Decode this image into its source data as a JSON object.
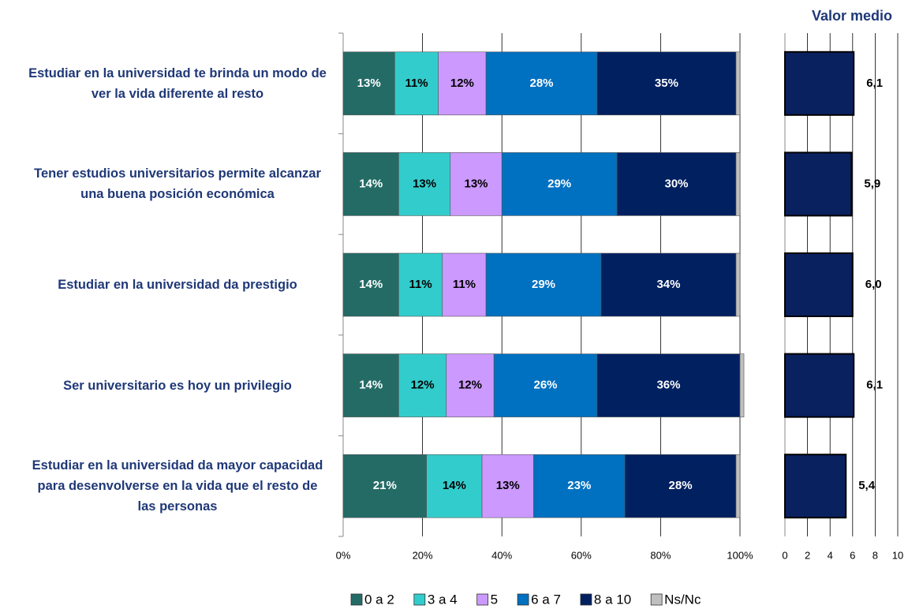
{
  "chart_data": [
    {
      "type": "stacked_bar_horizontal",
      "categories": [
        "Estudiar en la universidad te brinda un modo de ver la vida diferente al resto",
        "Tener estudios universitarios permite alcanzar una buena posición económica",
        "Estudiar en la universidad da prestigio",
        "Ser universitario es hoy un privilegio",
        "Estudiar en la universidad da mayor capacidad para desenvolverse en la vida que el resto de las personas"
      ],
      "series": [
        {
          "name": "0 a 2",
          "color": "#246b66",
          "label_color": "#ffffff",
          "values": [
            13,
            14,
            14,
            14,
            21
          ],
          "value_labels": [
            "13%",
            "14%",
            "14%",
            "14%",
            "21%"
          ]
        },
        {
          "name": "3 a 4",
          "color": "#33cccc",
          "label_color": "#000000",
          "values": [
            11,
            13,
            11,
            12,
            14
          ],
          "value_labels": [
            "11%",
            "13%",
            "11%",
            "12%",
            "14%"
          ]
        },
        {
          "name": "5",
          "color": "#cc99ff",
          "label_color": "#000000",
          "values": [
            12,
            13,
            11,
            12,
            13
          ],
          "value_labels": [
            "12%",
            "13%",
            "11%",
            "12%",
            "13%"
          ]
        },
        {
          "name": "6 a 7",
          "color": "#0070c0",
          "label_color": "#ffffff",
          "values": [
            28,
            29,
            29,
            26,
            23
          ],
          "value_labels": [
            "28%",
            "29%",
            "29%",
            "26%",
            "23%"
          ]
        },
        {
          "name": "8 a 10",
          "color": "#002060",
          "label_color": "#ffffff",
          "values": [
            35,
            30,
            34,
            36,
            28
          ],
          "value_labels": [
            "35%",
            "30%",
            "34%",
            "36%",
            "28%"
          ]
        },
        {
          "name": "Ns/Nc",
          "color": "#bfbfbf",
          "values": [
            1,
            1,
            1,
            1,
            1
          ]
        }
      ],
      "xlim": [
        0,
        100
      ],
      "xticks": [
        {
          "value": 0,
          "label": "0%"
        },
        {
          "value": 20,
          "label": "20%"
        },
        {
          "value": 40,
          "label": "40%"
        },
        {
          "value": 60,
          "label": "60%"
        },
        {
          "value": 80,
          "label": "80%"
        },
        {
          "value": 100,
          "label": "100%"
        }
      ],
      "grid": true,
      "legend": "bottom"
    },
    {
      "type": "bar_horizontal",
      "title": "Valor medio",
      "color": "#0a2160",
      "values": [
        6.1,
        5.9,
        6.0,
        6.1,
        5.4
      ],
      "value_labels": [
        "6,1",
        "5,9",
        "6,0",
        "6,1",
        "5,4"
      ],
      "xlim": [
        0,
        10
      ],
      "xticks": [
        0,
        2,
        4,
        6,
        8,
        10
      ],
      "grid": true
    }
  ]
}
